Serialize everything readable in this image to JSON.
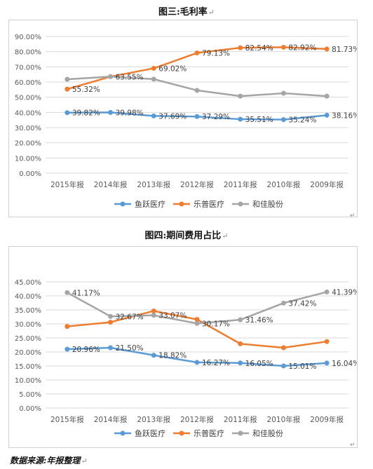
{
  "charts_page": {
    "title1": "图三:毛利率",
    "title2": "图四:期间费用占比",
    "source_note": "数据来源:年报整理"
  },
  "chart_data": [
    {
      "type": "line",
      "title": "图三:毛利率",
      "categories": [
        "2015年报",
        "2014年报",
        "2013年报",
        "2012年报",
        "2011年报",
        "2010年报",
        "2009年报"
      ],
      "ylim": [
        0,
        90
      ],
      "yticks": [
        0,
        10,
        20,
        30,
        40,
        50,
        60,
        70,
        80,
        90
      ],
      "ytick_labels": [
        "0.00%",
        "10.00%",
        "20.00%",
        "30.00%",
        "40.00%",
        "50.00%",
        "60.00%",
        "70.00%",
        "80.00%",
        "90.00%"
      ],
      "grid": true,
      "legend": "bottom",
      "series": [
        {
          "name": "鱼跃医疗",
          "color": "#5B9BD5",
          "values": [
            39.82,
            39.98,
            37.69,
            37.29,
            35.51,
            35.24,
            38.16
          ],
          "labels": [
            "39.82%",
            "39.98%",
            "37.69%",
            "37.29%",
            "35.51%",
            "35.24%",
            "38.16%"
          ]
        },
        {
          "name": "乐普医疗",
          "color": "#ED7D31",
          "values": [
            55.32,
            63.55,
            69.02,
            79.13,
            82.54,
            82.92,
            81.73
          ],
          "labels": [
            "55.32%",
            "",
            "69.02%",
            "79.13%",
            "82.54%",
            "82.92%",
            "81.73%"
          ]
        },
        {
          "name": "和佳股份",
          "color": "#A5A5A5",
          "values": [
            61.8,
            63.55,
            61.9,
            54.5,
            50.7,
            52.6,
            50.7
          ],
          "labels": [
            "",
            "63.55%",
            "",
            "",
            "",
            "",
            ""
          ]
        }
      ]
    },
    {
      "type": "line",
      "title": "图四:期间费用占比",
      "categories": [
        "2015年报",
        "2014年报",
        "2013年报",
        "2012年报",
        "2011年报",
        "2010年报",
        "2009年报"
      ],
      "ylim": [
        0,
        45
      ],
      "yticks": [
        0,
        5,
        10,
        15,
        20,
        25,
        30,
        35,
        40,
        45
      ],
      "ytick_labels": [
        "0.00%",
        "5.00%",
        "10.00%",
        "15.00%",
        "20.00%",
        "25.00%",
        "30.00%",
        "35.00%",
        "40.00%",
        "45.00%"
      ],
      "grid": true,
      "legend": "bottom",
      "series": [
        {
          "name": "鱼跃医疗",
          "color": "#5B9BD5",
          "values": [
            20.96,
            21.5,
            18.82,
            16.27,
            16.05,
            15.01,
            16.04
          ],
          "labels": [
            "20.96%",
            "21.50%",
            "18.82%",
            "16.27%",
            "16.05%",
            "15.01%",
            "16.04%"
          ]
        },
        {
          "name": "乐普医疗",
          "color": "#ED7D31",
          "values": [
            29.1,
            30.6,
            34.6,
            31.6,
            22.9,
            21.5,
            23.7
          ],
          "labels": [
            "",
            "",
            "",
            "",
            "",
            "",
            ""
          ]
        },
        {
          "name": "和佳股份",
          "color": "#A5A5A5",
          "values": [
            41.17,
            32.67,
            33.07,
            30.17,
            31.46,
            37.42,
            41.39
          ],
          "labels": [
            "41.17%",
            "32.67%",
            "33.07%",
            "30.17%",
            "31.46%",
            "37.42%",
            "41.39%"
          ]
        }
      ]
    }
  ]
}
